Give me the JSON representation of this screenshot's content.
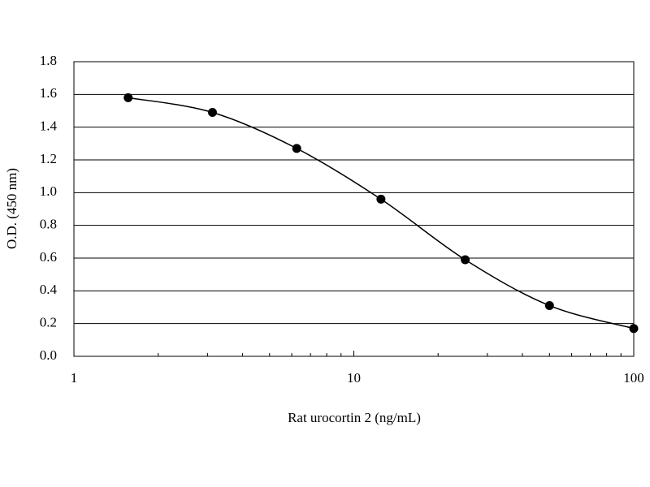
{
  "chart_data": {
    "type": "line",
    "x_label": "Rat urocortin 2 (ng/mL)",
    "y_label": "O.D. (450 nm)",
    "x": [
      1.5625,
      3.125,
      6.25,
      12.5,
      25,
      50,
      100
    ],
    "series": [
      {
        "color": "#000000",
        "values": [
          1.58,
          1.49,
          1.27,
          0.96,
          0.59,
          0.31,
          0.17
        ]
      }
    ],
    "xlim": [
      1,
      100
    ],
    "xscale": "log",
    "xticks": [
      1,
      10,
      100
    ],
    "xminorticks": [
      2,
      3,
      4,
      5,
      6,
      7,
      8,
      9,
      20,
      30,
      40,
      50,
      60,
      70,
      80,
      90
    ],
    "ylim": [
      0,
      1.8
    ],
    "yticks": [
      {
        "value": 0,
        "label": "0.0"
      },
      0.2,
      0.4,
      0.6,
      0.8,
      {
        "value": 1,
        "label": "1.0"
      },
      1.2,
      1.4,
      1.6,
      1.8
    ],
    "grid": true
  }
}
